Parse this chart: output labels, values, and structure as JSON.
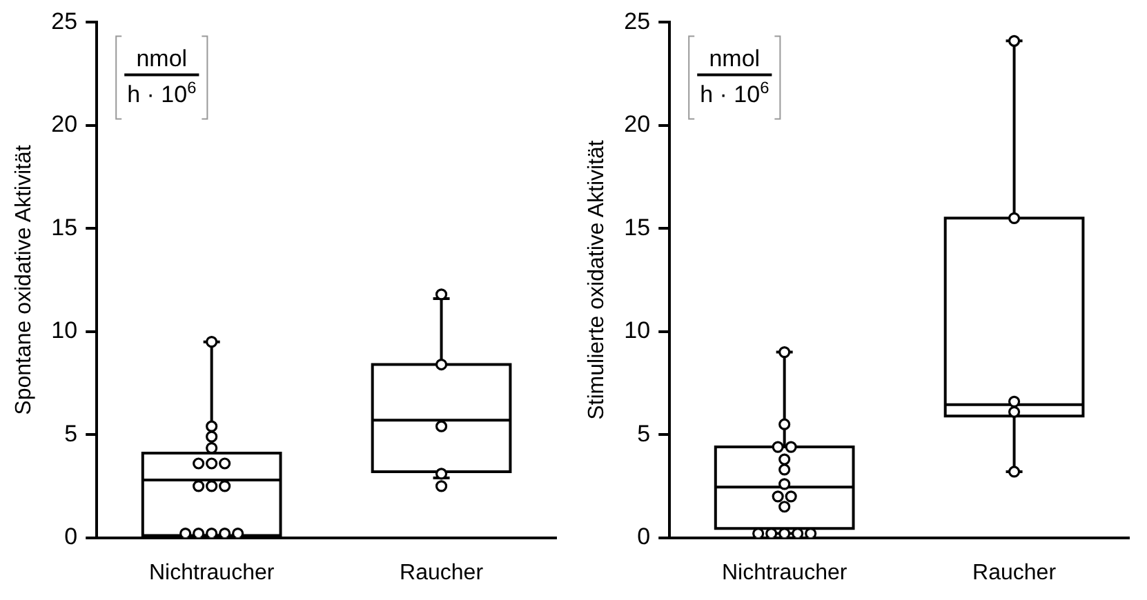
{
  "chart_data": [
    {
      "type": "box",
      "ylabel": "Spontane oxidative Aktivität",
      "annotations": [
        "nmol",
        "h · 10$^{6}$"
      ],
      "categories": [
        "Nichtraucher",
        "Raucher"
      ],
      "ylim": [
        0,
        25
      ],
      "yticks": [
        0,
        5,
        10,
        15,
        20,
        25
      ],
      "grid": false,
      "legend": false,
      "marker": "circle",
      "boxes": [
        {
          "low": 0.1,
          "q1": 0.1,
          "median": 2.8,
          "q3": 4.1,
          "high": 9.5
        },
        {
          "low": 2.9,
          "q1": 3.2,
          "median": 5.7,
          "q3": 8.4,
          "high": 11.6
        }
      ],
      "series": [
        {
          "type": "scatter",
          "color": "#000000",
          "x": [
            "Nichtraucher",
            "Nichtraucher",
            "Nichtraucher",
            "Nichtraucher",
            "Nichtraucher",
            "Nichtraucher",
            "Nichtraucher",
            "Nichtraucher",
            "Nichtraucher",
            "Nichtraucher",
            "Nichtraucher",
            "Nichtraucher",
            "Nichtraucher",
            "Nichtraucher",
            "Nichtraucher",
            "Raucher",
            "Raucher",
            "Raucher",
            "Raucher",
            "Raucher"
          ],
          "values": [
            9.5,
            5.4,
            4.9,
            4.35,
            3.6,
            3.6,
            3.6,
            2.5,
            2.5,
            2.5,
            0.2,
            0.2,
            0.2,
            0.2,
            0.2,
            11.8,
            8.4,
            5.4,
            3.1,
            2.5
          ]
        }
      ]
    },
    {
      "type": "box",
      "ylabel": "Stimulierte oxidative Aktivität",
      "annotations": [
        "nmol",
        "h · 10$^{6}$"
      ],
      "categories": [
        "Nichtraucher",
        "Raucher"
      ],
      "ylim": [
        0,
        25
      ],
      "yticks": [
        0,
        5,
        10,
        15,
        20,
        25
      ],
      "grid": false,
      "legend": false,
      "marker": "circle",
      "boxes": [
        {
          "low": 0.2,
          "q1": 0.45,
          "median": 2.45,
          "q3": 4.4,
          "high": 9.0
        },
        {
          "low": 3.2,
          "q1": 5.9,
          "median": 6.45,
          "q3": 15.5,
          "high": 24.1
        }
      ],
      "series": [
        {
          "type": "scatter",
          "color": "#000000",
          "x": [
            "Nichtraucher",
            "Nichtraucher",
            "Nichtraucher",
            "Nichtraucher",
            "Nichtraucher",
            "Nichtraucher",
            "Nichtraucher",
            "Nichtraucher",
            "Nichtraucher",
            "Nichtraucher",
            "Nichtraucher",
            "Nichtraucher",
            "Nichtraucher",
            "Nichtraucher",
            "Nichtraucher",
            "Raucher",
            "Raucher",
            "Raucher",
            "Raucher",
            "Raucher"
          ],
          "values": [
            9.0,
            5.5,
            4.4,
            4.4,
            3.8,
            3.3,
            2.6,
            2.0,
            2.0,
            1.5,
            0.2,
            0.2,
            0.2,
            0.2,
            0.2,
            24.1,
            15.5,
            6.6,
            6.1,
            3.2
          ]
        }
      ]
    }
  ]
}
